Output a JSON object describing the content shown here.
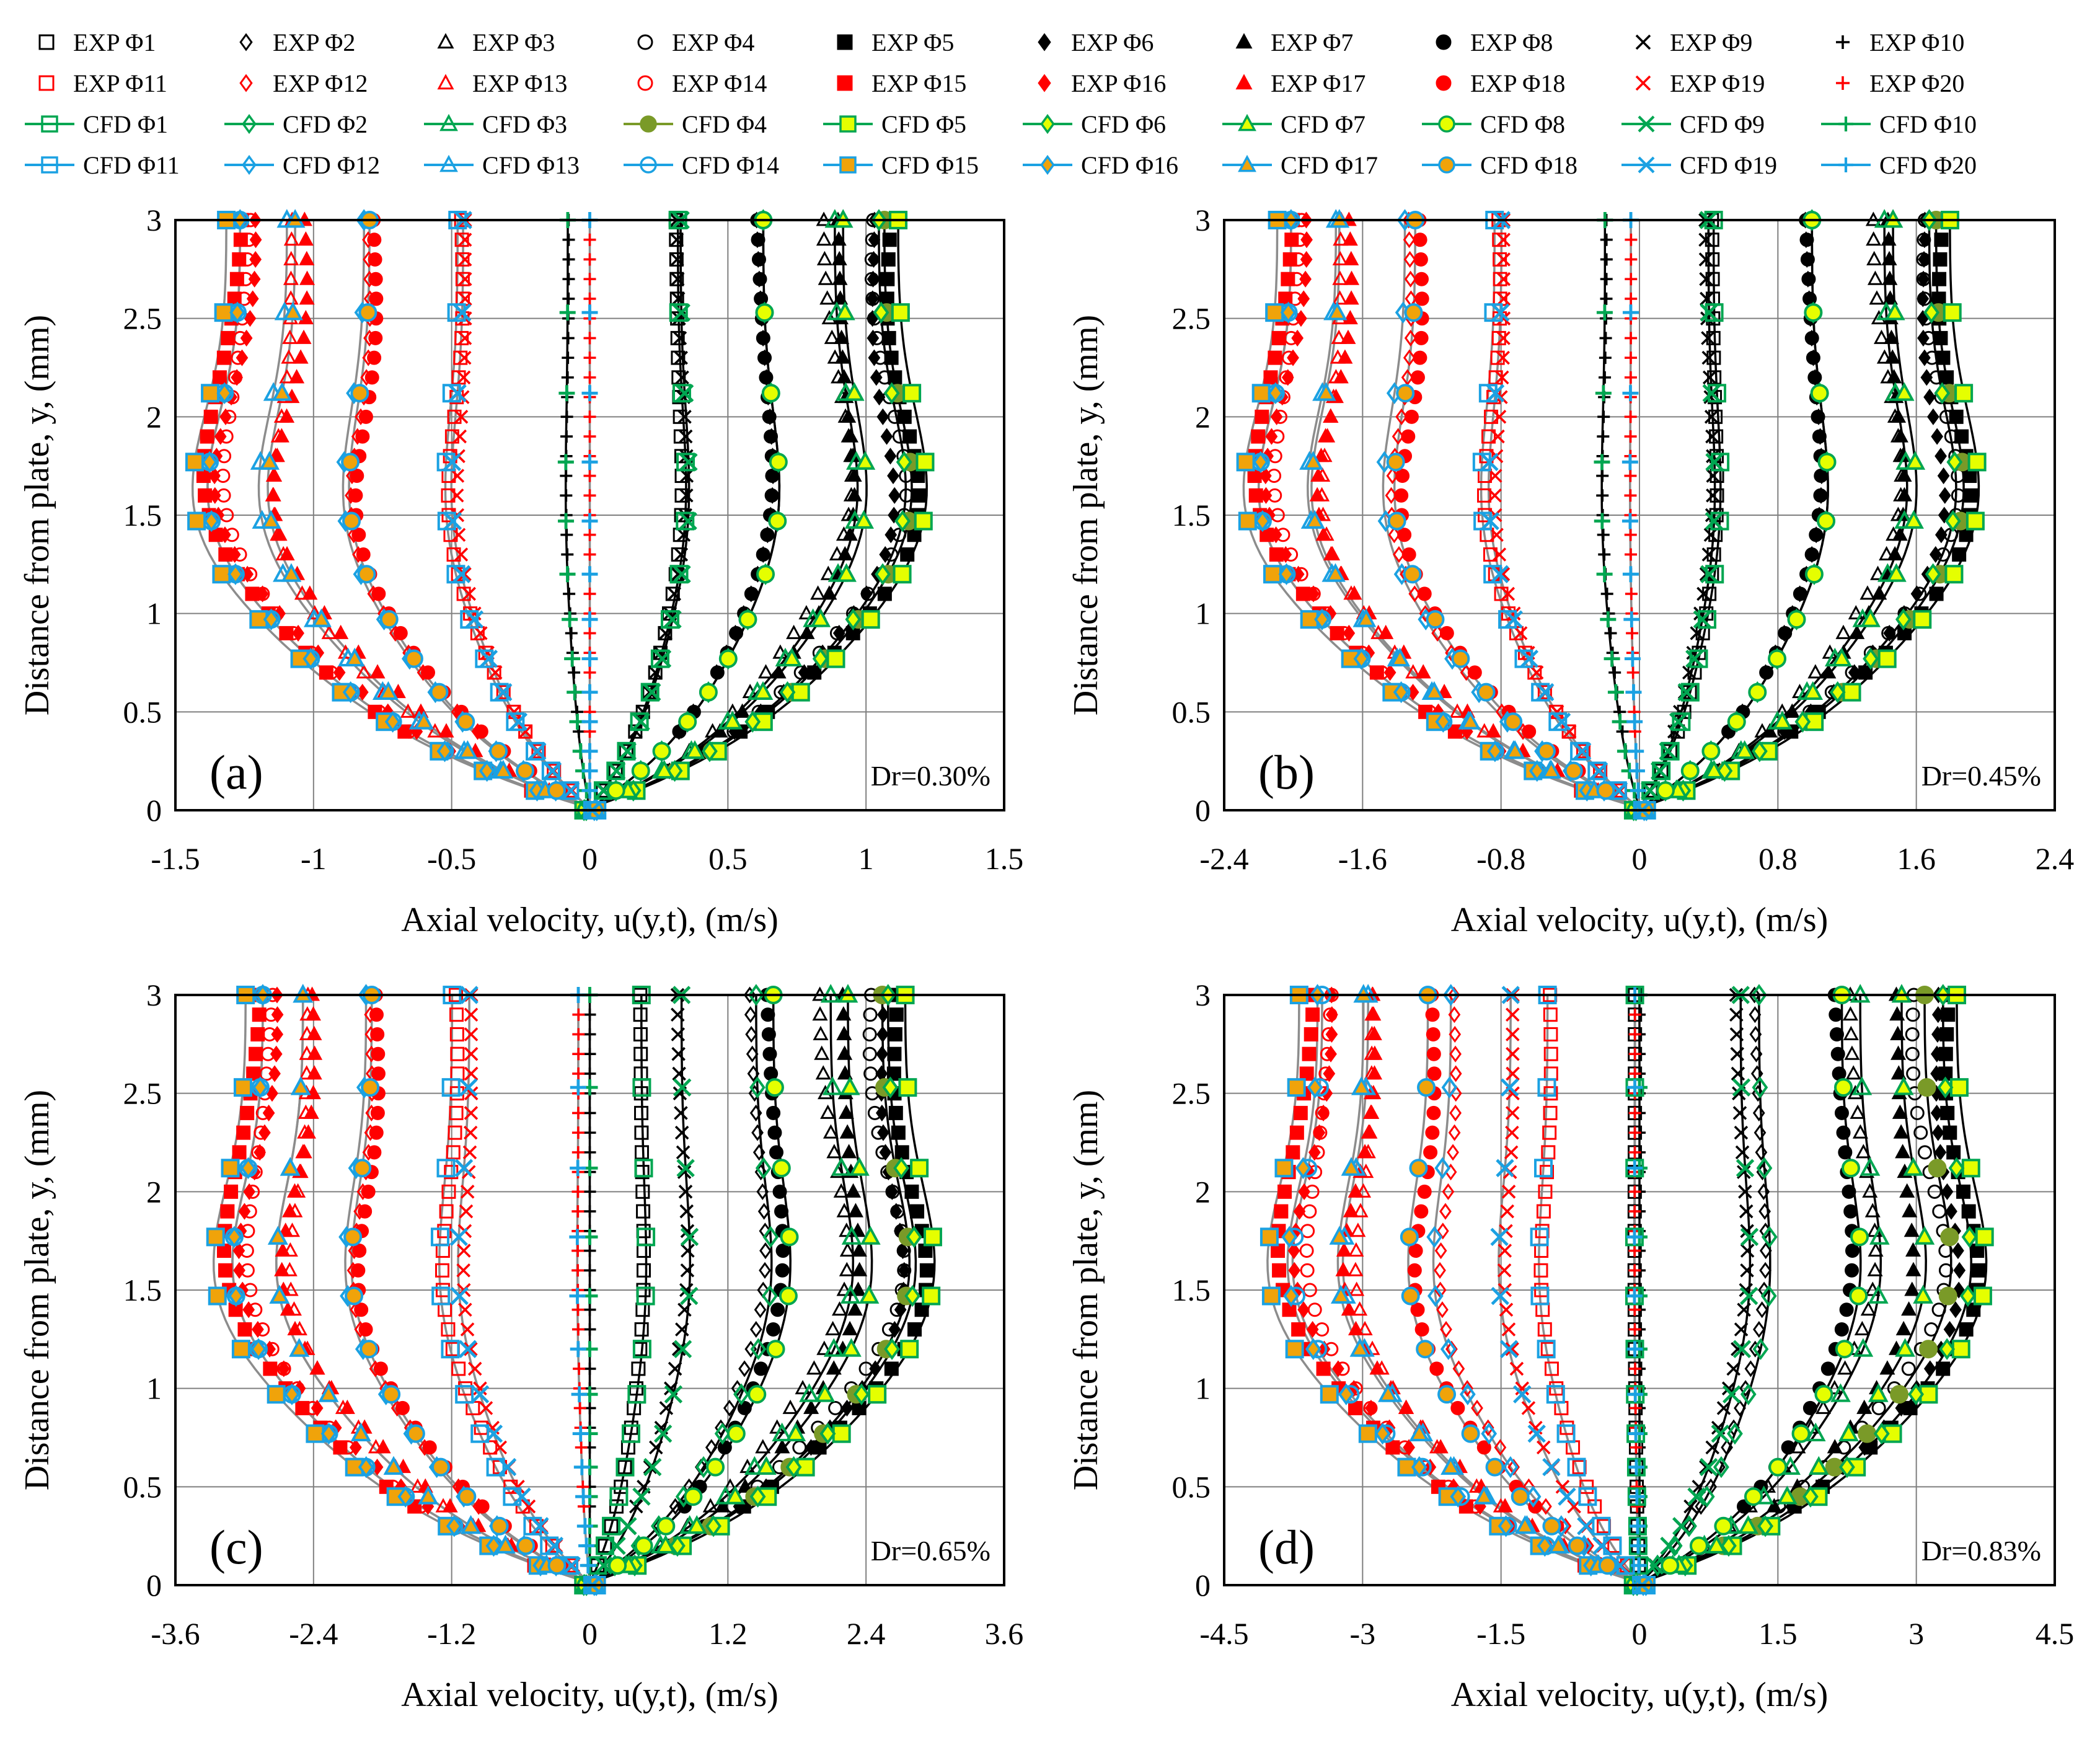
{
  "figure": {
    "legend_rows": [
      [
        "EXP Φ1",
        "EXP Φ2",
        "EXP Φ3",
        "EXP Φ4",
        "EXP Φ5",
        "EXP Φ6",
        "EXP Φ7",
        "EXP Φ8",
        "EXP Φ9",
        "EXP Φ10"
      ],
      [
        "EXP Φ11",
        "EXP Φ12",
        "EXP Φ13",
        "EXP Φ14",
        "EXP Φ15",
        "EXP Φ16",
        "EXP Φ17",
        "EXP Φ18",
        "EXP Φ19",
        "EXP Φ20"
      ],
      [
        "CFD Φ1",
        "CFD Φ2",
        "CFD Φ3",
        "CFD Φ4",
        "CFD Φ5",
        "CFD Φ6",
        "CFD Φ7",
        "CFD Φ8",
        "CFD Φ9",
        "CFD Φ10"
      ],
      [
        "CFD Φ11",
        "CFD Φ12",
        "CFD Φ13",
        "CFD Φ14",
        "CFD Φ15",
        "CFD Φ16",
        "CFD Φ17",
        "CFD Φ18",
        "CFD Φ19",
        "CFD Φ20"
      ]
    ],
    "colors": {
      "black": "#000000",
      "red": "#ff0000",
      "green": "#00a651",
      "yellow": "#e5ff00",
      "blue": "#1ba1e2",
      "gray": "#8c8c8c",
      "olive": "#7a9a28",
      "gold": "#f0a30a"
    },
    "icons": {
      "exp_phi": [
        "square-open",
        "diamond-open",
        "triangle-open",
        "circle-open",
        "square-filled",
        "diamond-filled",
        "triangle-filled",
        "circle-filled",
        "cross-x",
        "plus"
      ],
      "cfd_markers": [
        "square-open",
        "diamond-open",
        "triangle-open",
        "circle-filled",
        "square-filled",
        "diamond-filled",
        "triangle-filled",
        "circle-filled",
        "cross-x",
        "plus"
      ]
    }
  },
  "chart_data": [
    {
      "type": "line",
      "panel": "(a)",
      "annotation": "Dr=0.30%",
      "title": "",
      "xlabel": "Axial velocity, u(y,t), (m/s)",
      "ylabel": "Distance from plate, y, (mm)",
      "xlim": [
        -1.5,
        1.5
      ],
      "ylim": [
        0,
        3
      ],
      "xticks": [
        "-1.5",
        "-1",
        "-0.5",
        "0",
        "0.5",
        "1",
        "1.5"
      ],
      "yticks": [
        "0",
        "0.5",
        "1",
        "1.5",
        "2",
        "2.5",
        "3"
      ],
      "grid": true,
      "legend": "top",
      "y_points": [
        0,
        0.1,
        0.2,
        0.3,
        0.45,
        0.6,
        0.77,
        0.97,
        1.2,
        1.47,
        1.77,
        2.12,
        2.53,
        3.0
      ],
      "series_wall_velocity": {
        "Φ1": 0.32,
        "Φ2": 0.63,
        "Φ3": 0.89,
        "Φ4": 1.07,
        "Φ5": 1.12,
        "Φ6": 1.05,
        "Φ7": 0.92,
        "Φ8": 0.63,
        "Φ9": 0.33,
        "Φ10": -0.08,
        "Φ11": -0.48,
        "Φ12": -0.82,
        "Φ13": -1.1,
        "Φ14": -1.27,
        "Φ15": -1.32,
        "Φ16": -1.27,
        "Φ17": -1.07,
        "Φ18": -0.8,
        "Φ19": -0.46,
        "Φ20": 0.0
      }
    },
    {
      "type": "line",
      "panel": "(b)",
      "annotation": "Dr=0.45%",
      "title": "",
      "xlabel": "Axial velocity, u(y,t), (m/s)",
      "ylabel": "Distance from plate, y, (mm)",
      "xlim": [
        -2.4,
        2.4
      ],
      "ylim": [
        0,
        3
      ],
      "xticks": [
        "-2.4",
        "-1.6",
        "-0.8",
        "0",
        "0.8",
        "1.6",
        "2.4"
      ],
      "yticks": [
        "0",
        "0.5",
        "1",
        "1.5",
        "2",
        "2.5",
        "3"
      ],
      "grid": true,
      "legend": "top",
      "y_points": [
        0,
        0.1,
        0.2,
        0.3,
        0.45,
        0.6,
        0.77,
        0.97,
        1.2,
        1.47,
        1.77,
        2.12,
        2.53,
        3.0
      ],
      "series_wall_velocity": {
        "Φ1": 0.43,
        "Φ2": 1.0,
        "Φ3": 1.42,
        "Φ4": 1.72,
        "Φ5": 1.8,
        "Φ6": 1.68,
        "Φ7": 1.47,
        "Φ8": 1.0,
        "Φ9": 0.4,
        "Φ10": -0.2,
        "Φ11": -0.84,
        "Φ12": -1.36,
        "Φ13": -1.76,
        "Φ14": -2.02,
        "Φ15": -2.1,
        "Φ16": -2.02,
        "Φ17": -1.74,
        "Φ18": -1.3,
        "Φ19": -0.8,
        "Φ20": -0.05
      }
    },
    {
      "type": "line",
      "panel": "(c)",
      "annotation": "Dr=0.65%",
      "title": "",
      "xlabel": "Axial velocity, u(y,t), (m/s)",
      "ylabel": "Distance from plate, y, (mm)",
      "xlim": [
        -3.6,
        3.6
      ],
      "ylim": [
        0,
        3
      ],
      "xticks": [
        "-3.6",
        "-2.4",
        "-1.2",
        "0",
        "1.2",
        "2.4",
        "3.6"
      ],
      "yticks": [
        "0",
        "0.5",
        "1",
        "1.5",
        "2",
        "2.5",
        "3"
      ],
      "grid": true,
      "legend": "top",
      "y_points": [
        0,
        0.1,
        0.2,
        0.3,
        0.45,
        0.6,
        0.77,
        0.97,
        1.2,
        1.47,
        1.77,
        2.12,
        2.53,
        3.0
      ],
      "series_wall_velocity": {
        "Φ1": 0.45,
        "Φ2": 1.45,
        "Φ3": 2.1,
        "Φ4": 2.55,
        "Φ5": 2.75,
        "Φ6": 2.6,
        "Φ7": 2.25,
        "Φ8": 1.6,
        "Φ9": 0.8,
        "Φ10": 0.0,
        "Φ11": -1.2,
        "Φ12": -1.95,
        "Φ13": -2.5,
        "Φ14": -2.85,
        "Φ15": -3.0,
        "Φ16": -2.85,
        "Φ17": -2.5,
        "Φ18": -1.9,
        "Φ19": -1.05,
        "Φ20": -0.1
      }
    },
    {
      "type": "line",
      "panel": "(d)",
      "annotation": "Dr=0.83%",
      "title": "",
      "xlabel": "Axial velocity, u(y,t), (m/s)",
      "ylabel": "Distance from plate, y, (mm)",
      "xlim": [
        -4.5,
        4.5
      ],
      "ylim": [
        0,
        3
      ],
      "xticks": [
        "-4.5",
        "-3",
        "-1.5",
        "0",
        "1.5",
        "3",
        "4.5"
      ],
      "yticks": [
        "0",
        "0.5",
        "1",
        "1.5",
        "2",
        "2.5",
        "3"
      ],
      "grid": true,
      "legend": "top",
      "y_points": [
        0,
        0.1,
        0.2,
        0.3,
        0.45,
        0.6,
        0.77,
        0.97,
        1.2,
        1.47,
        1.77,
        2.12,
        2.53,
        3.0
      ],
      "series_wall_velocity": {
        "Φ1": -0.05,
        "Φ2": 1.3,
        "Φ3": 2.4,
        "Φ4": 3.1,
        "Φ5": 3.45,
        "Φ6": 3.3,
        "Φ7": 2.85,
        "Φ8": 2.2,
        "Φ9": 1.1,
        "Φ10": 0.0,
        "Φ11": -1.0,
        "Φ12": -2.05,
        "Φ13": -2.95,
        "Φ14": -3.45,
        "Φ15": -3.7,
        "Φ16": -3.5,
        "Φ17": -3.0,
        "Φ18": -2.3,
        "Φ19": -1.4,
        "Φ20": -0.05
      }
    }
  ]
}
